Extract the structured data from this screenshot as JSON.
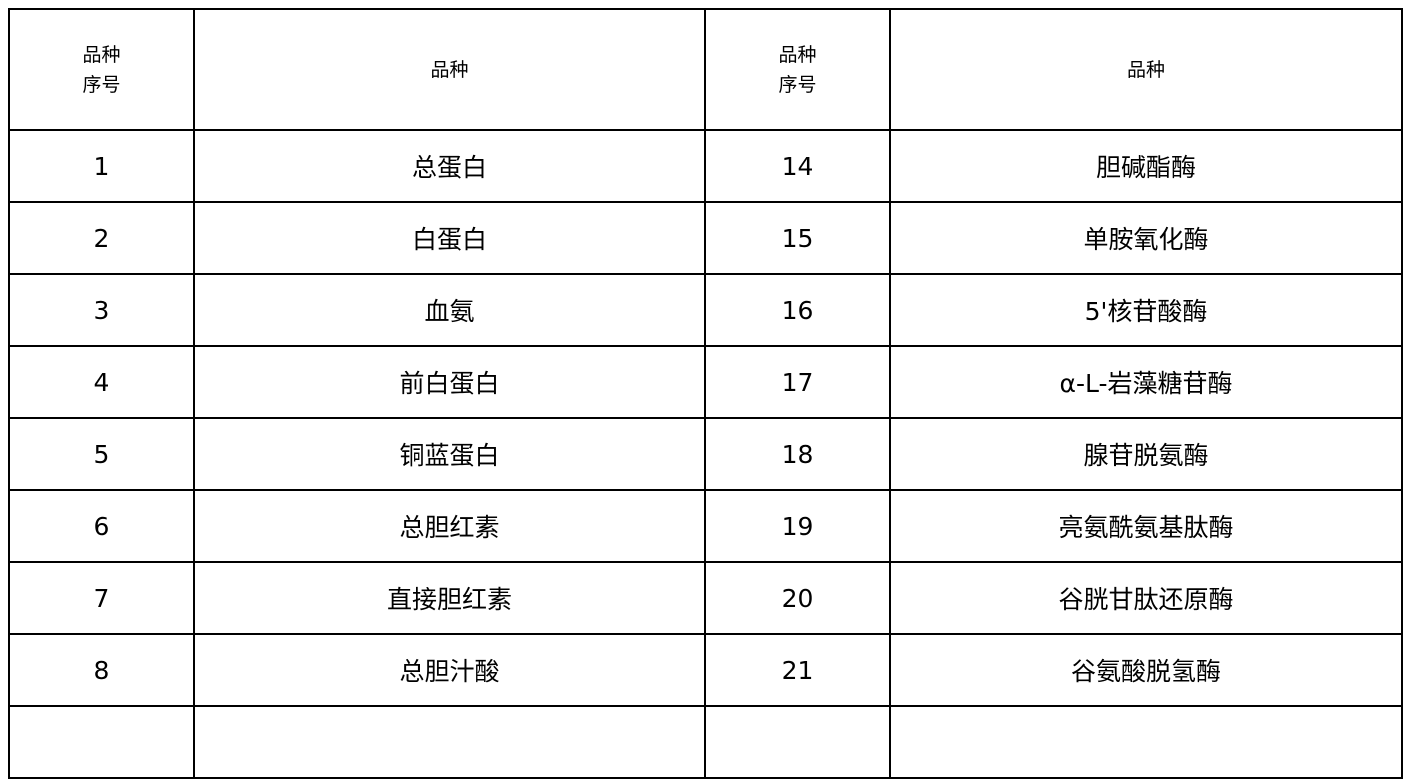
{
  "header": {
    "col1": [
      "品种",
      "序号"
    ],
    "col2": "品种",
    "col3": [
      "品种",
      "序号"
    ],
    "col4": "品种"
  },
  "rows": [
    [
      "1",
      "总蛋白",
      "14",
      "胆碱酯酶"
    ],
    [
      "2",
      "白蛋白",
      "15",
      "单胺氧化酶"
    ],
    [
      "3",
      "血氨",
      "16",
      "5'核苷酸酶"
    ],
    [
      "4",
      "前白蛋白",
      "17",
      "α-L-岩藻糖苷酶"
    ],
    [
      "5",
      "铜蓝蛋白",
      "18",
      "腺苷脱氨酶"
    ],
    [
      "6",
      "总胆红素",
      "19",
      "亮氨酰氨基肽酶"
    ],
    [
      "7",
      "直接胆红素",
      "20",
      "谷胱甘肽还原酶"
    ],
    [
      "8",
      "总胆汁酸",
      "21",
      "谷氨酸脱氢酶"
    ]
  ]
}
